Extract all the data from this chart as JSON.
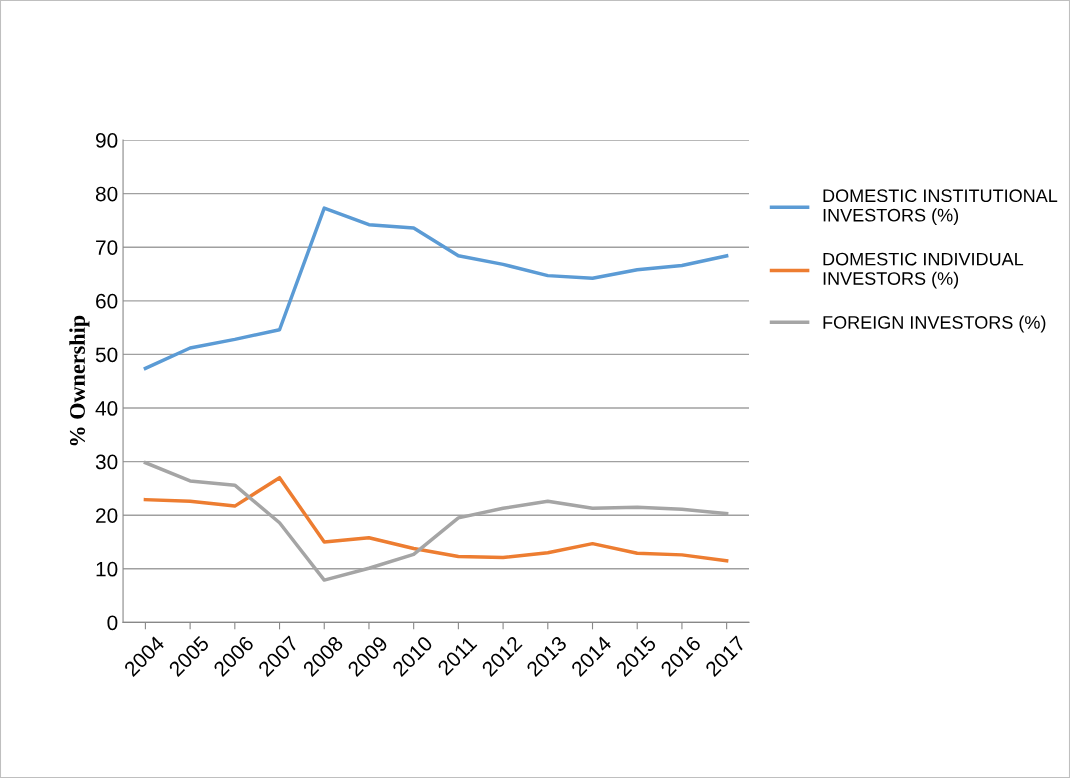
{
  "chart_data": {
    "type": "line",
    "ylabel": "% Ownership",
    "categories": [
      "2004",
      "2005",
      "2006",
      "2007",
      "2008",
      "2009",
      "2010",
      "2011",
      "2012",
      "2013",
      "2014",
      "2015",
      "2016",
      "2017"
    ],
    "series": [
      {
        "name": "DOMESTIC INSTITUTIONAL INVESTORS (%)",
        "color": "#5b9bd5",
        "values": [
          47.4,
          51.2,
          52.8,
          54.6,
          77.3,
          74.2,
          73.6,
          68.4,
          66.8,
          64.7,
          64.2,
          65.8,
          66.6,
          68.4
        ]
      },
      {
        "name": "DOMESTIC INDIVIDUAL INVESTORS (%)",
        "color": "#ed7d31",
        "values": [
          22.9,
          22.6,
          21.7,
          27.0,
          15.0,
          15.8,
          13.8,
          12.3,
          12.1,
          13.0,
          14.7,
          12.9,
          12.6,
          11.5
        ]
      },
      {
        "name": "FOREIGN INVESTORS (%)",
        "color": "#a5a5a5",
        "values": [
          29.8,
          26.4,
          25.6,
          18.6,
          7.9,
          10.1,
          12.7,
          19.5,
          21.3,
          22.6,
          21.3,
          21.5,
          21.1,
          20.3
        ]
      }
    ],
    "ylim": [
      0,
      90
    ],
    "yticks": [
      0,
      10,
      20,
      30,
      40,
      50,
      60,
      70,
      80,
      90
    ],
    "grid": "y",
    "legend": "right",
    "marker": "none",
    "line_style": "solid"
  }
}
